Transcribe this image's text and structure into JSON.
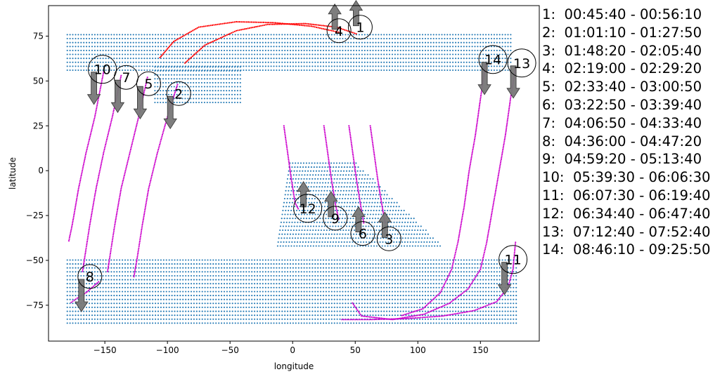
{
  "chart_data": {
    "type": "scatter",
    "title": "",
    "xlabel": "longitude",
    "ylabel": "latitude",
    "xlim": [
      -195,
      197
    ],
    "ylim": [
      -95,
      92
    ],
    "xticks": [
      -150,
      -100,
      -50,
      0,
      50,
      100,
      150
    ],
    "yticks": [
      -75,
      -50,
      -25,
      0,
      25,
      50,
      75
    ],
    "colors": {
      "land_points": "#1f77b4",
      "track_red": "#ff0000",
      "track_magenta": "#cc00cc",
      "arrow_fill": "#777777"
    },
    "land_regions": [
      {
        "name": "northern band",
        "lat_range": [
          56,
          77
        ],
        "lon_range": [
          -180,
          175
        ]
      },
      {
        "name": "northern bulge",
        "lat_range": [
          38,
          60
        ],
        "lon_range": [
          -110,
          -40
        ]
      },
      {
        "name": "southern wedge",
        "lat_range": [
          -42,
          5
        ],
        "lon_range": [
          -15,
          120
        ]
      },
      {
        "name": "southern band",
        "lat_range": [
          -85,
          -48
        ],
        "lon_range": [
          -180,
          180
        ]
      }
    ],
    "passes": [
      {
        "label": "1",
        "time": "00:45:40 - 00:56:10",
        "direction": "north",
        "marker": {
          "lon": 54,
          "lat": 80
        },
        "track_red": [
          [
            -86,
            60
          ],
          [
            -70,
            70
          ],
          [
            -45,
            78
          ],
          [
            -20,
            81.5
          ],
          [
            10,
            82
          ],
          [
            35,
            80
          ],
          [
            52,
            76
          ]
        ],
        "track_magenta": []
      },
      {
        "label": "2",
        "time": "01:01:10 - 01:27:50",
        "direction": "south",
        "marker": {
          "lon": -91,
          "lat": 43
        },
        "track_red": [],
        "track_magenta": [
          [
            -92,
            48
          ],
          [
            -100,
            30
          ],
          [
            -108,
            10
          ],
          [
            -115,
            -10
          ],
          [
            -120,
            -30
          ],
          [
            -124,
            -48
          ],
          [
            -127,
            -60
          ]
        ]
      },
      {
        "label": "3",
        "time": "01:48:20 - 02:05:40",
        "direction": "north",
        "marker": {
          "lon": 77,
          "lat": -38
        },
        "track_red": [],
        "track_magenta": [
          [
            62,
            25
          ],
          [
            65,
            10
          ],
          [
            68,
            -5
          ],
          [
            71,
            -18
          ],
          [
            74,
            -30
          ]
        ]
      },
      {
        "label": "4",
        "time": "02:19:00 - 02:29:20",
        "direction": "north",
        "marker": {
          "lon": 37,
          "lat": 78
        },
        "track_red": [
          [
            -106,
            63
          ],
          [
            -95,
            72
          ],
          [
            -75,
            80
          ],
          [
            -45,
            83
          ],
          [
            -15,
            82.5
          ],
          [
            15,
            80.5
          ],
          [
            38,
            77
          ]
        ],
        "track_magenta": []
      },
      {
        "label": "5",
        "time": "02:33:40 - 03:00:50",
        "direction": "south",
        "marker": {
          "lon": -115,
          "lat": 48.5
        },
        "track_red": [],
        "track_magenta": [
          [
            -116,
            52
          ],
          [
            -123,
            30
          ],
          [
            -130,
            10
          ],
          [
            -137,
            -10
          ],
          [
            -142,
            -30
          ],
          [
            -146,
            -48
          ],
          [
            -148,
            -57
          ]
        ]
      },
      {
        "label": "6",
        "time": "03:22:50 - 03:39:40",
        "direction": "north",
        "marker": {
          "lon": 56,
          "lat": -35
        },
        "track_red": [],
        "track_magenta": [
          [
            25,
            25
          ],
          [
            28,
            10
          ],
          [
            31,
            -5
          ],
          [
            34,
            -18
          ],
          [
            37,
            -28
          ]
        ]
      },
      {
        "label": "7",
        "time": "04:06:50 - 04:33:40",
        "direction": "south",
        "marker": {
          "lon": -133,
          "lat": 52
        },
        "track_red": [],
        "track_magenta": [
          [
            -137,
            53
          ],
          [
            -144,
            30
          ],
          [
            -151,
            10
          ],
          [
            -157,
            -10
          ],
          [
            -162,
            -30
          ],
          [
            -166,
            -48
          ],
          [
            -168,
            -57
          ]
        ]
      },
      {
        "label": "8",
        "time": "04:36:00 - 04:47:20",
        "direction": "south",
        "marker": {
          "lon": -162,
          "lat": -59
        },
        "track_red": [],
        "track_magenta": [
          [
            -155,
            -62
          ],
          [
            -165,
            -68
          ],
          [
            -172,
            -71
          ],
          [
            -178,
            -74
          ]
        ]
      },
      {
        "label": "9",
        "time": "04:59:20 - 05:13:40",
        "direction": "north",
        "marker": {
          "lon": 34,
          "lat": -26.5
        },
        "track_red": [],
        "track_magenta": [
          [
            -7,
            25
          ],
          [
            -4,
            10
          ],
          [
            -1,
            -5
          ],
          [
            2,
            -18
          ],
          [
            5,
            -22
          ]
        ]
      },
      {
        "label": "10",
        "time": "05:39:30 - 06:06:30",
        "direction": "south",
        "marker": {
          "lon": -152,
          "lat": 56.5
        },
        "track_red": [],
        "track_magenta": [
          [
            -151,
            55
          ],
          [
            -158,
            30
          ],
          [
            -165,
            10
          ],
          [
            -171,
            -10
          ],
          [
            -176,
            -30
          ],
          [
            -179,
            -40
          ]
        ]
      },
      {
        "label": "11",
        "time": "06:07:30 - 06:19:40",
        "direction": "south",
        "marker": {
          "lon": 176,
          "lat": -49.5
        },
        "track_red": [],
        "track_magenta": [
          [
            178,
            -40
          ],
          [
            176,
            -55
          ],
          [
            172,
            -65
          ],
          [
            163,
            -73
          ],
          [
            145,
            -78
          ],
          [
            120,
            -81
          ],
          [
            90,
            -82.5
          ],
          [
            60,
            -83
          ],
          [
            38,
            -83
          ]
        ]
      },
      {
        "label": "12",
        "time": "06:34:40 - 06:47:40",
        "direction": "north",
        "marker": {
          "lon": 12,
          "lat": -21
        },
        "track_red": [],
        "track_magenta": [
          [
            45,
            25
          ],
          [
            48,
            10
          ],
          [
            51,
            -5
          ],
          [
            54,
            -18
          ],
          [
            57,
            -30
          ]
        ]
      },
      {
        "label": "13",
        "time": "07:12:40 - 07:52:40",
        "direction": "south",
        "marker": {
          "lon": 183,
          "lat": 60
        },
        "track_red": [],
        "track_magenta": [
          [
            178,
            57
          ],
          [
            174,
            40
          ],
          [
            170,
            20
          ],
          [
            165,
            0
          ],
          [
            160,
            -20
          ],
          [
            155,
            -40
          ],
          [
            150,
            -55
          ],
          [
            140,
            -66
          ],
          [
            125,
            -74
          ],
          [
            105,
            -80
          ],
          [
            80,
            -83
          ],
          [
            55,
            -81
          ],
          [
            47,
            -73
          ]
        ]
      },
      {
        "label": "14",
        "time": "08:46:10 - 09:25:50",
        "direction": "south",
        "marker": {
          "lon": 160,
          "lat": 62
        },
        "track_red": [],
        "track_magenta": [
          [
            154,
            59
          ],
          [
            150,
            40
          ],
          [
            146,
            20
          ],
          [
            141,
            0
          ],
          [
            137,
            -20
          ],
          [
            132,
            -40
          ],
          [
            127,
            -55
          ],
          [
            118,
            -68
          ],
          [
            104,
            -77
          ],
          [
            86,
            -81
          ]
        ]
      }
    ]
  }
}
